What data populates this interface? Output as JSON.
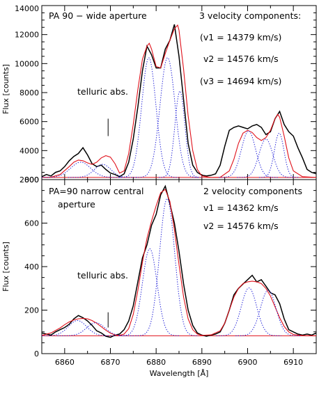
{
  "chart_data": [
    {
      "type": "line",
      "xlabel": "",
      "ylabel": "Flux [counts]",
      "xlim": [
        6855,
        6915
      ],
      "ylim": [
        2000,
        14000
      ],
      "yticks": [
        2000,
        4000,
        6000,
        8000,
        10000,
        12000,
        14000
      ],
      "xticks": [
        6860,
        6870,
        6880,
        6890,
        6900,
        6910
      ],
      "show_xtick_labels": false,
      "annotations": {
        "title": "PA 90 − wide aperture",
        "components_title": "3 velocity components:",
        "v1": "(v1 = 14379 km/s)",
        "v2": "v2 = 14576 km/s",
        "v3": "(v3 = 14694 km/s)",
        "telluric": "telluric abs."
      },
      "telluric_marker": {
        "x": 6869.5,
        "y_range": [
          5000,
          6200
        ]
      },
      "baseline": 2150,
      "series": [
        {
          "role": "observed",
          "color": "#000000",
          "style": "solid",
          "x": [
            6855,
            6856,
            6857,
            6858,
            6859,
            6860,
            6861,
            6862,
            6863,
            6864,
            6865,
            6866,
            6867,
            6868,
            6869,
            6870,
            6871,
            6872,
            6873,
            6874,
            6875,
            6876,
            6877,
            6878,
            6879,
            6880,
            6881,
            6882,
            6883,
            6884,
            6885,
            6886,
            6887,
            6888,
            6889,
            6890,
            6891,
            6892,
            6893,
            6894,
            6895,
            6896,
            6897,
            6898,
            6899,
            6900,
            6901,
            6902,
            6903,
            6904,
            6905,
            6906,
            6907,
            6908,
            6909,
            6910,
            6911,
            6912,
            6913,
            6914,
            6915
          ],
          "y": [
            2200,
            2350,
            2250,
            2500,
            2600,
            2900,
            3300,
            3600,
            3800,
            4200,
            3700,
            3100,
            2900,
            3000,
            2700,
            2450,
            2350,
            2200,
            2400,
            3200,
            4800,
            7000,
            9500,
            11200,
            10600,
            9700,
            9700,
            11000,
            11600,
            12700,
            10500,
            7500,
            4500,
            3000,
            2500,
            2300,
            2250,
            2300,
            2400,
            3000,
            4300,
            5400,
            5600,
            5700,
            5600,
            5500,
            5700,
            5800,
            5600,
            5100,
            5300,
            6200,
            6700,
            5800,
            5300,
            5000,
            4200,
            3500,
            2700,
            2500,
            2400
          ]
        },
        {
          "role": "fit-total",
          "color": "#e0101a",
          "style": "solid",
          "x": [
            6855,
            6857,
            6859,
            6861,
            6862,
            6863,
            6864,
            6865,
            6866,
            6867,
            6868,
            6869,
            6870,
            6871,
            6872,
            6873,
            6874,
            6875,
            6876,
            6877,
            6878,
            6878.5,
            6879,
            6880,
            6881,
            6882,
            6883,
            6884,
            6884.7,
            6885,
            6886,
            6887,
            6888,
            6889,
            6890,
            6892,
            6894,
            6896,
            6897,
            6898,
            6899,
            6900,
            6901,
            6902,
            6903,
            6904,
            6905,
            6906,
            6906.6,
            6907,
            6908,
            6909,
            6910,
            6912,
            6915
          ],
          "y": [
            2150,
            2170,
            2350,
            2900,
            3200,
            3350,
            3300,
            3150,
            3050,
            3200,
            3500,
            3650,
            3550,
            3100,
            2450,
            2600,
            3800,
            5800,
            8200,
            10300,
            11200,
            11400,
            11000,
            9800,
            9700,
            10700,
            11600,
            12400,
            12650,
            12300,
            9600,
            6400,
            4000,
            2700,
            2250,
            2150,
            2160,
            2600,
            3400,
            4500,
            5200,
            5400,
            5250,
            4900,
            4700,
            4900,
            5400,
            6200,
            6500,
            6300,
            5000,
            3500,
            2600,
            2200,
            2150
          ]
        },
        {
          "role": "component",
          "color": "#2020d8",
          "style": "dotted",
          "type": "gaussian",
          "params": [
            {
              "amp": 1050,
              "center": 6863.5,
              "sigma": 2.2
            },
            {
              "amp": 900,
              "center": 6868.3,
              "sigma": 1.8
            },
            {
              "amp": 8250,
              "center": 6878.4,
              "sigma": 1.55
            },
            {
              "amp": 8250,
              "center": 6882.5,
              "sigma": 1.65
            },
            {
              "amp": 5950,
              "center": 6885.2,
              "sigma": 1.1
            },
            {
              "amp": 3200,
              "center": 6900.2,
              "sigma": 1.55
            },
            {
              "amp": 2650,
              "center": 6904.0,
              "sigma": 1.5
            },
            {
              "amp": 3050,
              "center": 6906.9,
              "sigma": 1.05
            }
          ]
        }
      ]
    },
    {
      "type": "line",
      "xlabel": "Wavelength [Å]",
      "ylabel": "Flux [counts]",
      "xlim": [
        6855,
        6915
      ],
      "ylim": [
        0,
        800
      ],
      "yticks": [
        0,
        200,
        400,
        600,
        800
      ],
      "xticks": [
        6860,
        6870,
        6880,
        6890,
        6900,
        6910
      ],
      "show_xtick_labels": true,
      "annotations": {
        "title_line1": "PA=90 narrow central",
        "title_line2": "aperture",
        "components_title": "2 velocity components",
        "v1": "v1 = 14362 km/s",
        "v2": "v2 = 14576 km/s",
        "telluric": "telluric abs."
      },
      "telluric_marker": {
        "x": 6869.5,
        "y_range": [
          120,
          190
        ]
      },
      "baseline": 82,
      "series": [
        {
          "role": "observed",
          "color": "#000000",
          "style": "solid",
          "x": [
            6855,
            6856,
            6857,
            6858,
            6859,
            6860,
            6861,
            6862,
            6863,
            6864,
            6865,
            6866,
            6867,
            6868,
            6869,
            6870,
            6871,
            6872,
            6873,
            6874,
            6875,
            6876,
            6877,
            6878,
            6879,
            6880,
            6881,
            6882,
            6883,
            6884,
            6885,
            6886,
            6887,
            6888,
            6889,
            6890,
            6891,
            6892,
            6893,
            6894,
            6895,
            6896,
            6897,
            6898,
            6899,
            6900,
            6901,
            6902,
            6903,
            6904,
            6905,
            6906,
            6907,
            6908,
            6909,
            6910,
            6911,
            6912,
            6913,
            6914,
            6915
          ],
          "y": [
            95,
            90,
            85,
            100,
            110,
            120,
            135,
            160,
            175,
            165,
            150,
            130,
            105,
            95,
            80,
            75,
            85,
            90,
            110,
            150,
            220,
            330,
            440,
            500,
            590,
            640,
            730,
            770,
            690,
            600,
            470,
            320,
            200,
            130,
            95,
            85,
            80,
            85,
            90,
            100,
            140,
            200,
            270,
            300,
            320,
            340,
            360,
            330,
            340,
            310,
            280,
            270,
            230,
            160,
            110,
            100,
            90,
            85,
            90,
            85,
            95
          ]
        },
        {
          "role": "fit-total",
          "color": "#e0101a",
          "style": "solid",
          "x": [
            6855,
            6857,
            6859,
            6860,
            6861,
            6862,
            6863,
            6864,
            6865,
            6866,
            6867,
            6868,
            6869,
            6870,
            6871,
            6872,
            6873,
            6874,
            6875,
            6876,
            6877,
            6878,
            6879,
            6880,
            6881,
            6882,
            6883,
            6884,
            6885,
            6886,
            6887,
            6888,
            6889,
            6890,
            6892,
            6894,
            6895,
            6896,
            6897,
            6898,
            6899,
            6900,
            6901,
            6902,
            6903,
            6904,
            6905,
            6906,
            6907,
            6908,
            6909,
            6910,
            6912,
            6915
          ],
          "y": [
            84,
            95,
            118,
            133,
            146,
            155,
            160,
            162,
            160,
            152,
            140,
            124,
            108,
            94,
            86,
            84,
            90,
            115,
            180,
            290,
            420,
            530,
            610,
            680,
            740,
            755,
            700,
            570,
            410,
            260,
            160,
            110,
            90,
            84,
            86,
            105,
            140,
            200,
            260,
            300,
            322,
            330,
            333,
            330,
            322,
            300,
            265,
            215,
            165,
            125,
            100,
            88,
            83,
            82
          ]
        },
        {
          "role": "component",
          "color": "#2020d8",
          "style": "dotted",
          "type": "gaussian",
          "params": [
            {
              "amp": 70,
              "center": 6862.8,
              "sigma": 2.0
            },
            {
              "amp": 60,
              "center": 6866.8,
              "sigma": 2.0
            },
            {
              "amp": 400,
              "center": 6878.6,
              "sigma": 1.6
            },
            {
              "amp": 630,
              "center": 6882.4,
              "sigma": 1.65
            },
            {
              "amp": 220,
              "center": 6900.3,
              "sigma": 1.7
            },
            {
              "amp": 210,
              "center": 6904.5,
              "sigma": 1.7
            }
          ]
        }
      ]
    }
  ]
}
